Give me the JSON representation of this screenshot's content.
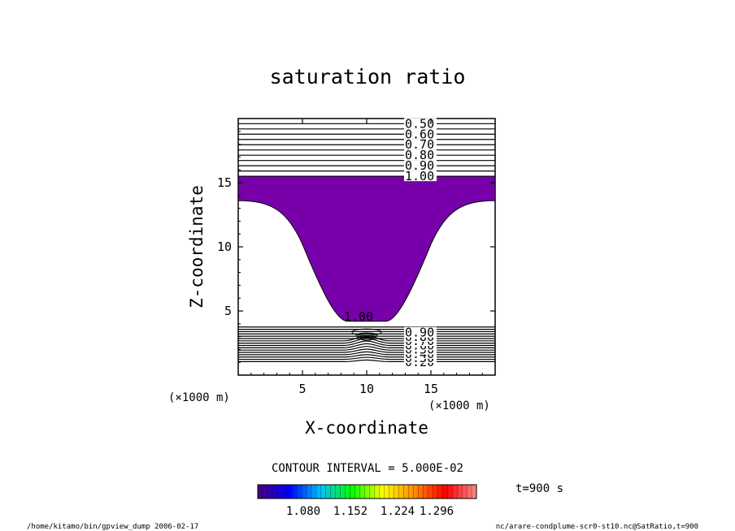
{
  "chart_data": {
    "type": "contour",
    "title": "saturation ratio",
    "xlabel": "X-coordinate",
    "ylabel": "Z-coordinate",
    "xunit": "(×1000 m)",
    "yunit": "(×1000 m)",
    "xlim": [
      0,
      20
    ],
    "ylim": [
      0,
      20
    ],
    "xticks": [
      5,
      10,
      15
    ],
    "yticks": [
      5,
      10,
      15
    ],
    "contour_interval_text": "CONTOUR INTERVAL = 5.000E-02",
    "upper_contours": [
      0.5,
      0.55,
      0.6,
      0.65,
      0.7,
      0.75,
      0.8,
      0.85,
      0.9,
      0.95,
      1.0
    ],
    "upper_contour_labels": [
      "0.50",
      "0.60",
      "0.70",
      "0.80",
      "0.90",
      "1.00"
    ],
    "lower_contour_labels": [
      "0.20",
      "0.30",
      "0.40",
      "0.50",
      "0.60",
      "0.70",
      "0.80",
      "0.90"
    ],
    "inner_contour_label": "1.00",
    "supersaturated_region": {
      "color": "#7700aa",
      "top_z": 15.5,
      "edge_z": 13.6,
      "bottom_z": 4.2,
      "trough_x_range": [
        8.5,
        11.5
      ]
    },
    "colorbar": {
      "tick_labels": [
        "1.080",
        "1.152",
        "1.224",
        "1.296"
      ],
      "colors": [
        "#4b0082",
        "#0000ff",
        "#00bfff",
        "#00ff00",
        "#ffff00",
        "#ff8c00",
        "#ff0000",
        "#ff8888"
      ]
    },
    "time_label": "t=900 s",
    "footer_left": "/home/kitamo/bin/gpview_dump  2006-02-17",
    "footer_right": "nc/arare-condplume-scr0-st10.nc@SatRatio,t=900"
  }
}
